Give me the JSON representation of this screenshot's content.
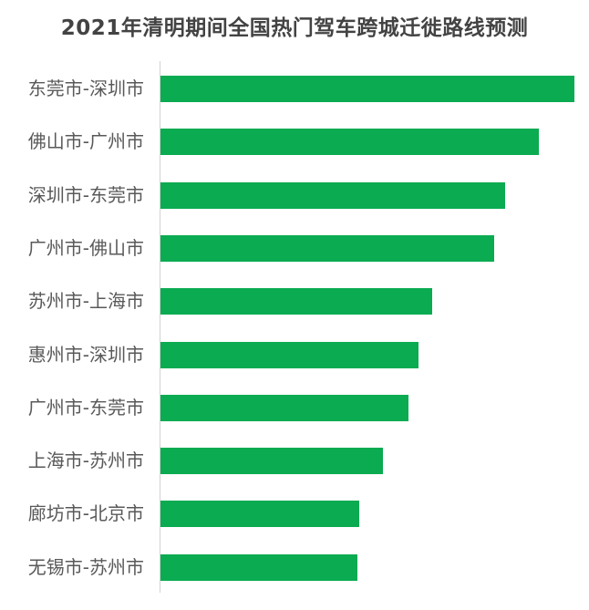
{
  "page": {
    "background_color": "#ffffff"
  },
  "chart_data": {
    "type": "bar",
    "orientation": "horizontal",
    "title": "2021年清明期间全国热门驾车跨城迁徙路线预测",
    "categories": [
      "东莞市-深圳市",
      "佛山市-广州市",
      "深圳市-东莞市",
      "广州市-佛山市",
      "苏州市-上海市",
      "惠州市-深圳市",
      "广州市-东莞市",
      "上海市-苏州市",
      "廊坊市-北京市",
      "无锡市-苏州市"
    ],
    "values": [
      100,
      91.4,
      83.3,
      80.6,
      65.6,
      62.3,
      59.9,
      53.7,
      48.0,
      47.6
    ],
    "values_note": "No numeric axis, ticks or data labels are shown in the chart; values are relative bar lengths normalized to the longest bar = 100",
    "xlabel": "",
    "ylabel": "",
    "xlim": [
      0,
      100
    ],
    "grid": false,
    "legend": false,
    "sorted": "descending",
    "bar_color": "#0aab51",
    "axis_line_color": "#d2d2d2",
    "title_color": "#434343",
    "label_color": "#595959"
  }
}
